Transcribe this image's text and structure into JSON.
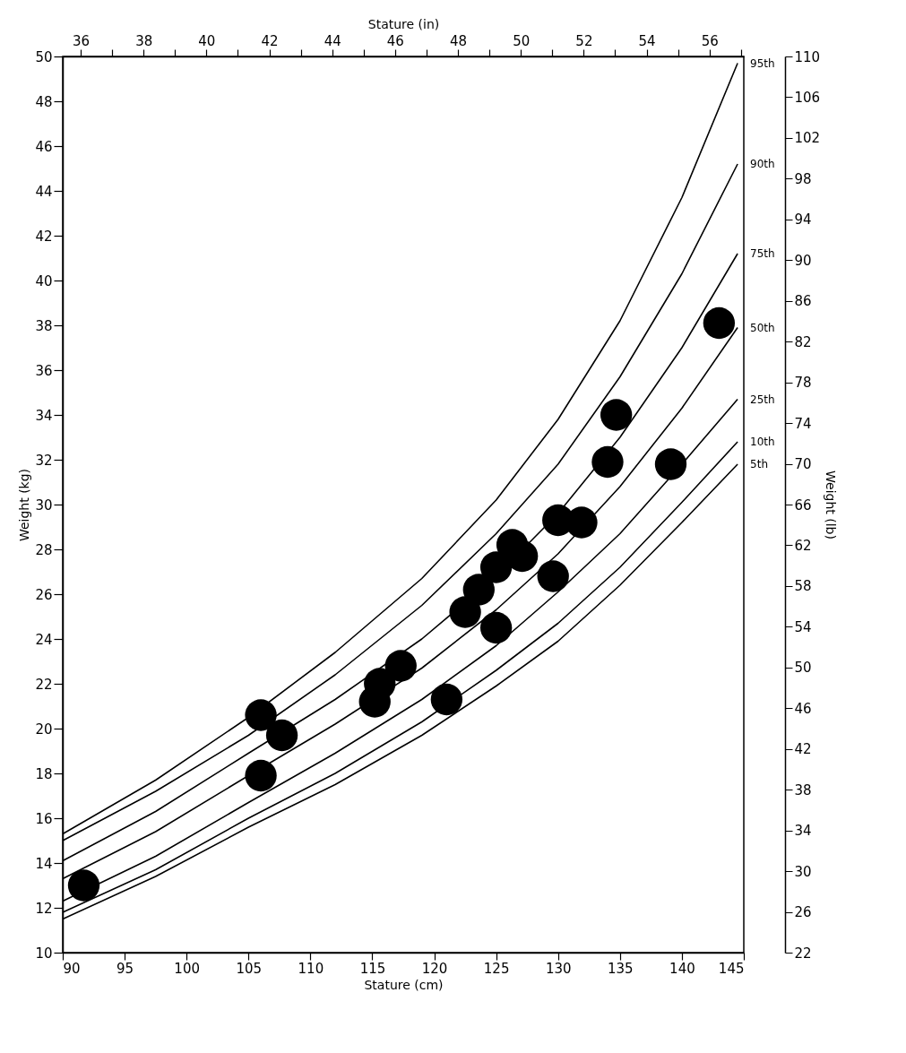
{
  "chart_data": {
    "type": "line",
    "xlabel": "Stature (cm)",
    "x2label": "Stature (in)",
    "ylabel": "Weight (kg)",
    "y2label": "Weight (lb)",
    "xlim": [
      90,
      145
    ],
    "xticks": [
      90,
      95,
      100,
      105,
      110,
      115,
      120,
      125,
      130,
      135,
      140,
      145
    ],
    "x2lim": [
      35.43,
      57.09
    ],
    "x2ticks": [
      36,
      {
        "value": 37,
        "label": null
      },
      38,
      {
        "value": 39,
        "label": null
      },
      40,
      {
        "value": 41,
        "label": null
      },
      42,
      {
        "value": 43,
        "label": null
      },
      44,
      {
        "value": 45,
        "label": null
      },
      46,
      {
        "value": 47,
        "label": null
      },
      48,
      {
        "value": 49,
        "label": null
      },
      50,
      {
        "value": 51,
        "label": null
      },
      52,
      {
        "value": 53,
        "label": null
      },
      54,
      {
        "value": 55,
        "label": null
      },
      56,
      {
        "value": 57,
        "label": null
      }
    ],
    "ylim": [
      10,
      50
    ],
    "yticks": [
      10,
      12,
      14,
      16,
      18,
      20,
      22,
      24,
      26,
      28,
      30,
      32,
      34,
      36,
      38,
      40,
      42,
      44,
      46,
      48,
      50
    ],
    "y2lim": [
      22,
      110
    ],
    "y2ticks": [
      22,
      26,
      30,
      34,
      38,
      42,
      46,
      50,
      54,
      58,
      62,
      66,
      70,
      74,
      78,
      82,
      86,
      90,
      94,
      98,
      102,
      106,
      110
    ],
    "grid": false,
    "line_style": "solid",
    "series": [
      {
        "name": "95th",
        "color": "#000000",
        "x": [
          90,
          97.5,
          105,
          112,
          119,
          125,
          130,
          135,
          140,
          144.5
        ],
        "values": [
          15.3,
          17.7,
          20.5,
          23.4,
          26.7,
          30.2,
          33.8,
          38.2,
          43.7,
          49.7
        ]
      },
      {
        "name": "90th",
        "color": "#000000",
        "x": [
          90,
          97.5,
          105,
          112,
          119,
          125,
          130,
          135,
          140,
          144.5
        ],
        "values": [
          15.0,
          17.2,
          19.7,
          22.4,
          25.5,
          28.7,
          31.8,
          35.7,
          40.3,
          45.2
        ]
      },
      {
        "name": "75th",
        "color": "#000000",
        "x": [
          90,
          97.5,
          105,
          112,
          119,
          125,
          130,
          135,
          140,
          144.5
        ],
        "values": [
          14.1,
          16.3,
          18.9,
          21.3,
          24.0,
          26.8,
          29.6,
          33.0,
          37.0,
          41.2
        ]
      },
      {
        "name": "50th",
        "color": "#000000",
        "x": [
          90,
          97.5,
          105,
          112,
          119,
          125,
          130,
          135,
          140,
          144.5
        ],
        "values": [
          13.3,
          15.4,
          17.9,
          20.2,
          22.7,
          25.3,
          27.8,
          30.8,
          34.3,
          37.9
        ]
      },
      {
        "name": "25th",
        "color": "#000000",
        "x": [
          90,
          97.5,
          105,
          112,
          119,
          125,
          130,
          135,
          140,
          144.5
        ],
        "values": [
          12.3,
          14.3,
          16.7,
          18.9,
          21.3,
          23.7,
          26.1,
          28.7,
          31.8,
          34.7
        ]
      },
      {
        "name": "10th",
        "color": "#000000",
        "x": [
          90,
          97.5,
          105,
          112,
          119,
          125,
          130,
          135,
          140,
          144.5
        ],
        "values": [
          11.8,
          13.7,
          16.0,
          18.0,
          20.3,
          22.6,
          24.7,
          27.2,
          30.1,
          32.8
        ]
      },
      {
        "name": "5th",
        "color": "#000000",
        "x": [
          90,
          97.5,
          105,
          112,
          119,
          125,
          130,
          135,
          140,
          144.5
        ],
        "values": [
          11.5,
          13.4,
          15.6,
          17.5,
          19.7,
          21.9,
          23.9,
          26.4,
          29.2,
          31.8
        ]
      },
      {
        "type": "scatter",
        "marker": "circle",
        "color": "#000000",
        "x": [
          91.7,
          106.0,
          106.0,
          107.7,
          115.2,
          115.6,
          117.3,
          121.0,
          122.5,
          123.6,
          125.0,
          126.3,
          127.1,
          125.0,
          129.6,
          130.0,
          131.9,
          134.0,
          134.7,
          139.1,
          143.0
        ],
        "values": [
          13.0,
          20.6,
          17.9,
          19.7,
          21.2,
          22.0,
          22.8,
          21.3,
          25.2,
          26.2,
          27.2,
          28.2,
          27.7,
          24.5,
          26.8,
          29.3,
          29.2,
          31.9,
          34.0,
          31.8,
          38.1
        ]
      }
    ]
  }
}
